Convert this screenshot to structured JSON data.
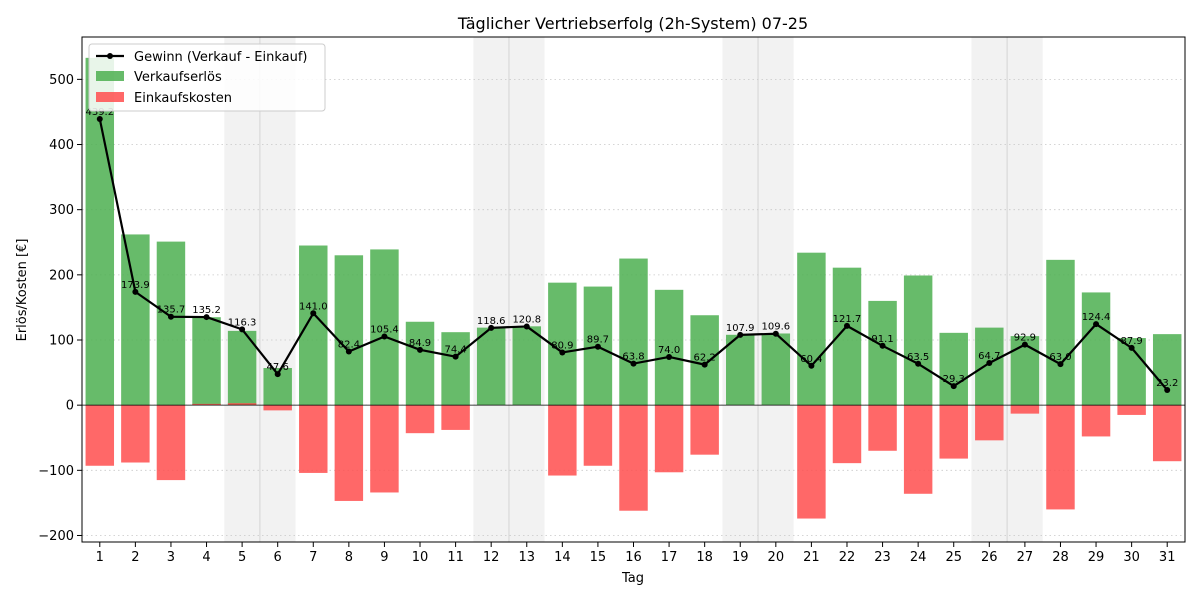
{
  "chart_data": {
    "type": "bar",
    "title": "Täglicher Vertriebserfolg (2h-System) 07-25",
    "xlabel": "Tag",
    "ylabel": "Erlös/Kosten [€]",
    "ylim": [
      -210,
      565
    ],
    "yticks": [
      -200,
      -100,
      0,
      100,
      200,
      300,
      400,
      500
    ],
    "grid": "y-dotted",
    "legend_position": "top-left",
    "weekend_shading": [
      [
        5,
        6
      ],
      [
        12,
        13
      ],
      [
        19,
        20
      ],
      [
        26,
        27
      ]
    ],
    "categories": [
      "1",
      "2",
      "3",
      "4",
      "5",
      "6",
      "7",
      "8",
      "9",
      "10",
      "11",
      "12",
      "13",
      "14",
      "15",
      "16",
      "17",
      "18",
      "19",
      "20",
      "21",
      "22",
      "23",
      "24",
      "25",
      "26",
      "27",
      "28",
      "29",
      "30",
      "31"
    ],
    "series": [
      {
        "name": "Gewinn (Verkauf - Einkauf)",
        "type": "line",
        "color": "#000000",
        "values": [
          439.2,
          173.9,
          135.7,
          135.2,
          116.3,
          47.6,
          141.0,
          82.4,
          105.4,
          84.9,
          74.4,
          118.6,
          120.8,
          80.9,
          89.7,
          63.8,
          74.0,
          62.2,
          107.9,
          109.6,
          60.4,
          121.7,
          91.1,
          63.5,
          29.3,
          64.7,
          92.9,
          63.0,
          124.4,
          87.9,
          23.2
        ],
        "labels": [
          "439.2",
          "173.9",
          "135.7",
          "135.2",
          "116.3",
          "47.6",
          "141.0",
          "82.4",
          "105.4",
          "84.9",
          "74.4",
          "118.6",
          "120.8",
          "80.9",
          "89.7",
          "63.8",
          "74.0",
          "62.2",
          "107.9",
          "109.6",
          "60.4",
          "121.7",
          "91.1",
          "63.5",
          "29.3",
          "64.7",
          "92.9",
          "63.0",
          "124.4",
          "87.9",
          "23.2"
        ]
      },
      {
        "name": "Verkaufserlös",
        "type": "bar",
        "color": "#4caf50",
        "values": [
          533,
          262,
          251,
          135,
          114,
          57,
          245,
          230,
          239,
          128,
          112,
          119,
          121,
          188,
          182,
          225,
          177,
          138,
          108,
          110,
          234,
          211,
          160,
          199,
          111,
          119,
          106,
          223,
          173,
          103,
          109
        ]
      },
      {
        "name": "Einkaufskosten",
        "type": "bar",
        "color": "#ff4d4d",
        "values": [
          -93,
          -88,
          -115,
          2,
          3,
          -8,
          -104,
          -147,
          -134,
          -43,
          -38,
          0,
          0,
          -108,
          -93,
          -162,
          -103,
          -76,
          0,
          0,
          -174,
          -89,
          -70,
          -136,
          -82,
          -54,
          -13,
          -160,
          -48,
          -15,
          -86
        ]
      }
    ]
  }
}
